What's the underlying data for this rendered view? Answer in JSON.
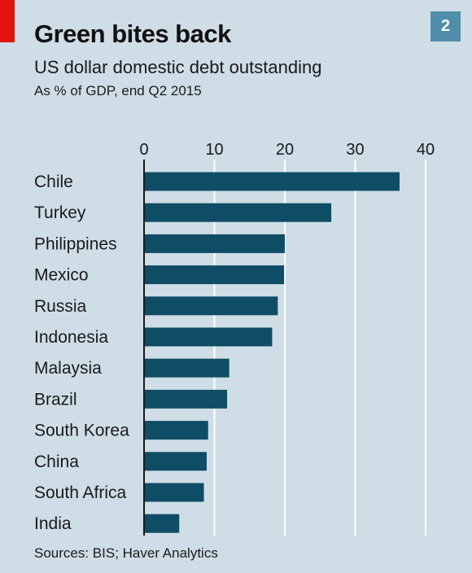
{
  "header": {
    "title": "Green bites back",
    "badge": "2",
    "subtitle": "US dollar domestic debt outstanding",
    "unit": "As % of GDP, end Q2 2015"
  },
  "footer": {
    "source": "Sources: BIS; Haver Analytics"
  },
  "colors": {
    "bar": "#0e4d65",
    "grid": "#ffffff",
    "background": "#cfdde6",
    "accent": "#e3120b",
    "badge": "#4f8dab"
  },
  "chart_data": {
    "type": "bar",
    "orientation": "horizontal",
    "title": "Green bites back",
    "subtitle": "US dollar domestic debt outstanding",
    "unit": "As % of GDP, end Q2 2015",
    "categories": [
      "Chile",
      "Turkey",
      "Philippines",
      "Mexico",
      "Russia",
      "Indonesia",
      "Malaysia",
      "Brazil",
      "South Korea",
      "China",
      "South Africa",
      "India"
    ],
    "values": [
      36.3,
      26.6,
      20.0,
      19.9,
      19.0,
      18.2,
      12.1,
      11.8,
      9.1,
      8.9,
      8.5,
      5.0
    ],
    "xlim": [
      0,
      40
    ],
    "xticks": [
      0,
      10,
      20,
      30,
      40
    ],
    "grid": true,
    "axis_position": "top"
  }
}
